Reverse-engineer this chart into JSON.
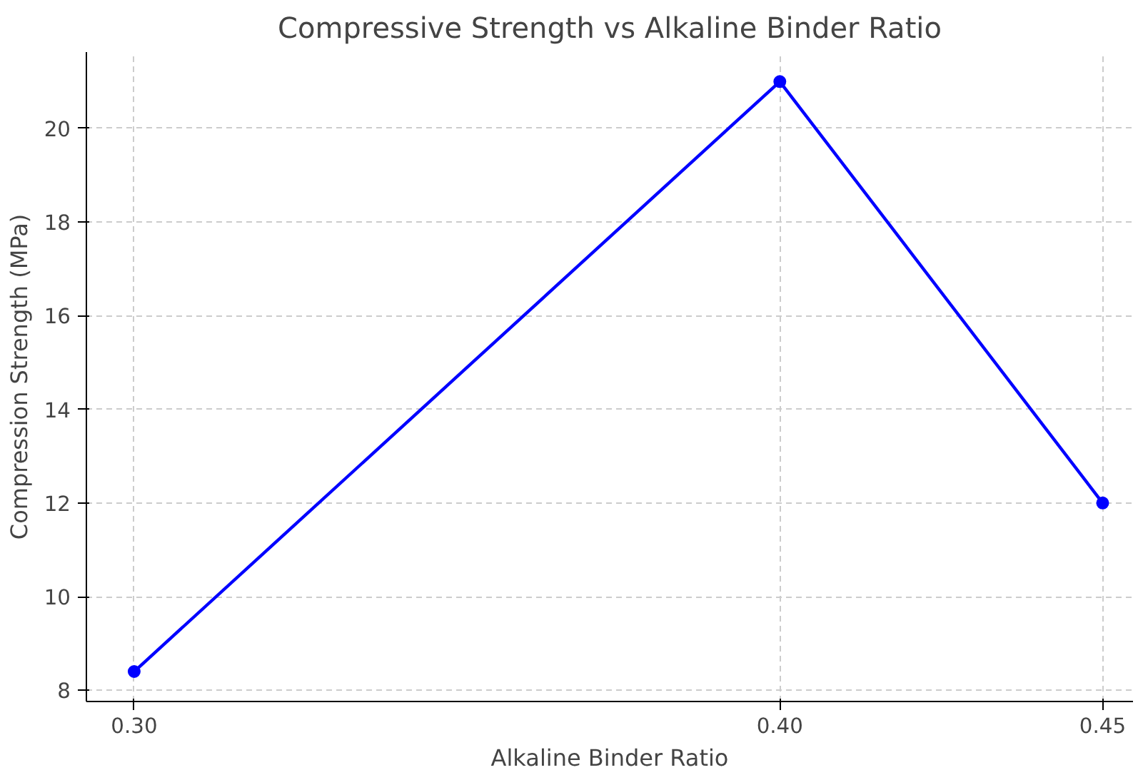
{
  "chart_data": {
    "type": "line",
    "title": "Compressive Strength vs Alkaline Binder Ratio",
    "xlabel": "Alkaline Binder Ratio",
    "ylabel": "Compression Strength (MPa)",
    "x": [
      0.3,
      0.4,
      0.45
    ],
    "series": [
      {
        "color": "#0000ff",
        "values": [
          8.4,
          21,
          12
        ]
      }
    ],
    "xlim": [
      0.2926,
      0.4547
    ],
    "ylim": [
      7.76,
      21.63
    ],
    "xticks": [
      {
        "value": 0.3,
        "label": "0.30"
      },
      {
        "value": 0.4,
        "label": "0.40"
      },
      {
        "value": 0.45,
        "label": "0.45"
      }
    ],
    "yticks": [
      8,
      10,
      12,
      14,
      16,
      18,
      20
    ],
    "grid": true,
    "marker": "circle",
    "line_style": "solid"
  }
}
